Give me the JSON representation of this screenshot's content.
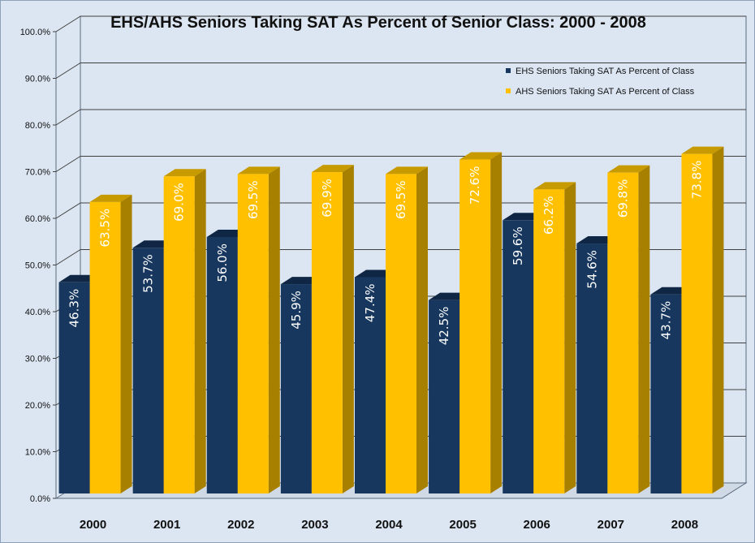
{
  "chart_data": {
    "type": "bar",
    "title": "EHS/AHS Seniors Taking SAT As Percent of Senior Class: 2000 - 2008",
    "xlabel": "",
    "ylabel": "",
    "categories": [
      "2000",
      "2001",
      "2002",
      "2003",
      "2004",
      "2005",
      "2006",
      "2007",
      "2008"
    ],
    "series": [
      {
        "name": "EHS Seniors Taking SAT As Percent of Class",
        "color": "#17375e",
        "top_color": "#0f2744",
        "side_color": "#0c203a",
        "values": [
          46.3,
          53.7,
          56.0,
          45.9,
          47.4,
          42.5,
          59.6,
          54.6,
          43.7
        ],
        "labels": [
          "46.3%",
          "53.7%",
          "56.0%",
          "45.9%",
          "47.4%",
          "42.5%",
          "59.6%",
          "54.6%",
          "43.7%"
        ]
      },
      {
        "name": "AHS Seniors Taking SAT As Percent of Class",
        "color": "#ffc000",
        "top_color": "#c79a00",
        "side_color": "#a88000",
        "values": [
          63.5,
          69.0,
          69.5,
          69.9,
          69.5,
          72.6,
          66.2,
          69.8,
          73.8
        ],
        "labels": [
          "63.5%",
          "69.0%",
          "69.5%",
          "69.9%",
          "69.5%",
          "72.6%",
          "66.2%",
          "69.8%",
          "73.8%"
        ]
      }
    ],
    "ylim": [
      0,
      100
    ],
    "yticks": [
      "0.0%",
      "10.0%",
      "20.0%",
      "30.0%",
      "40.0%",
      "50.0%",
      "60.0%",
      "70.0%",
      "80.0%",
      "90.0%",
      "100.0%"
    ],
    "grid": true,
    "legend_position": "top-right",
    "background_color": "#dce6f2",
    "gridline_color": "#404040"
  }
}
